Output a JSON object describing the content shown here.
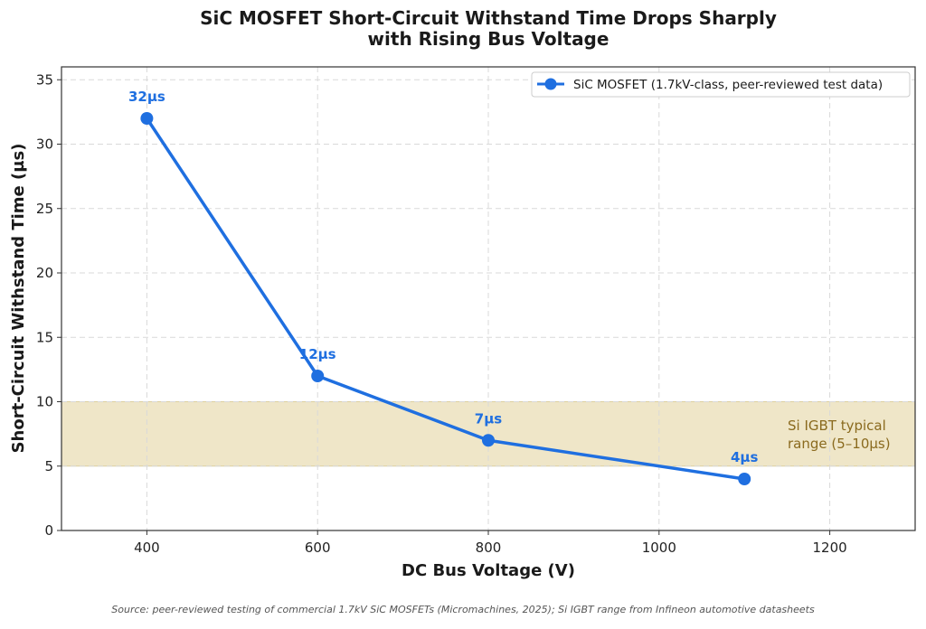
{
  "chart_data": {
    "type": "line",
    "title": "SiC MOSFET Short-Circuit Withstand Time Drops Sharply with Rising Bus Voltage",
    "title_lines": [
      "SiC MOSFET Short-Circuit Withstand Time Drops Sharply",
      "with Rising Bus Voltage"
    ],
    "xlabel": "DC Bus Voltage (V)",
    "ylabel": "Short-Circuit Withstand Time (µs)",
    "xlim": [
      300,
      1300
    ],
    "ylim": [
      0,
      36
    ],
    "xticks": [
      400,
      600,
      800,
      1000,
      1200
    ],
    "yticks": [
      0,
      5,
      10,
      15,
      20,
      25,
      30,
      35
    ],
    "grid": true,
    "legend_position": "top-right",
    "series": [
      {
        "name": "SiC MOSFET (1.7kV-class, peer-reviewed test data)",
        "color": "#1f6fe0",
        "x": [
          400,
          600,
          800,
          1100
        ],
        "y": [
          32,
          12,
          7,
          4
        ],
        "labels": [
          "32µs",
          "12µs",
          "7µs",
          "4µs"
        ]
      }
    ],
    "band": {
      "y_range": [
        5,
        10
      ],
      "label_lines": [
        "Si IGBT typical",
        "range (5–10µs)"
      ],
      "fill_color": "#efe6c8",
      "text_color": "#8a6a1e"
    },
    "source": "Source: peer-reviewed testing of commercial 1.7kV SiC MOSFETs (Micromachines, 2025); Si IGBT range from Infineon automotive datasheets"
  }
}
